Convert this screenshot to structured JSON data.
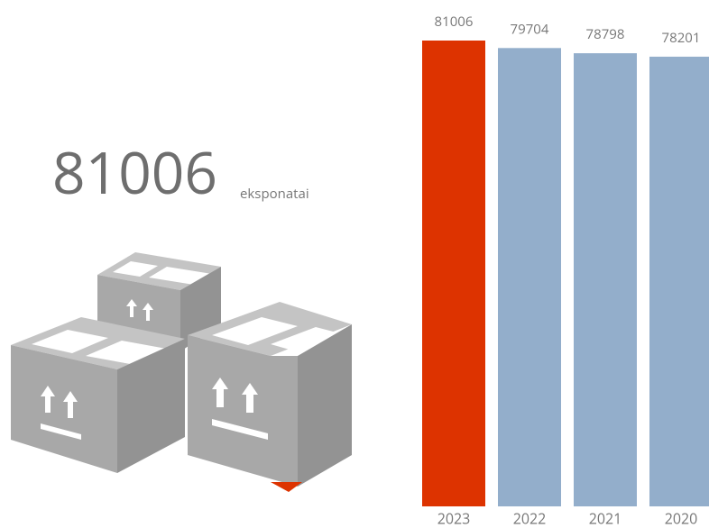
{
  "headline": {
    "number": "81006",
    "unit": "eksponatai"
  },
  "chart_data": {
    "type": "bar",
    "categories": [
      "2023",
      "2022",
      "2021",
      "2020"
    ],
    "values": [
      81006,
      79704,
      78798,
      78201
    ],
    "colors": [
      "#dd3300",
      "#93aecb",
      "#93aecb",
      "#93aecb"
    ]
  }
}
